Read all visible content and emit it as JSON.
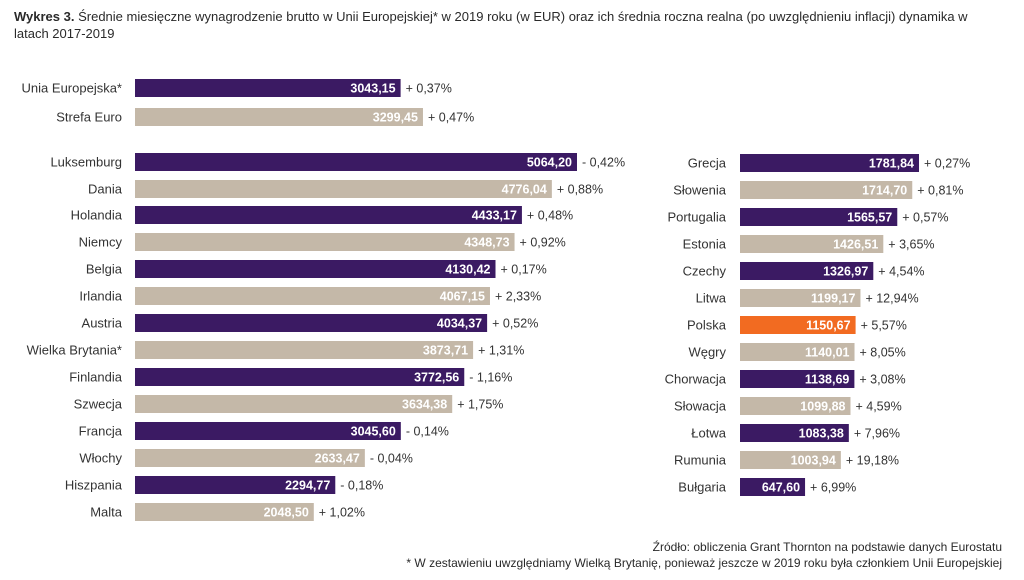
{
  "header": {
    "label": "Wykres 3.",
    "text": "Średnie miesięczne wynagrodzenie brutto w Unii Europejskiej* w 2019 roku (w EUR) oraz ich średnia roczna realna (po uwzględnieniu inflacji) dynamika w latach 2017-2019"
  },
  "footer": {
    "source": "Źródło: obliczenia Grant Thornton na podstawie danych Eurostatu",
    "note": "* W zestawieniu uwzględniamy Wielką Brytanię, ponieważ jeszcze w 2019 roku była członkiem Unii Europejskiej"
  },
  "colors": {
    "purple": "#3b1a63",
    "beige": "#c4b8a8",
    "orange": "#f26b21"
  },
  "chart_data": [
    {
      "type": "bar",
      "orientation": "horizontal",
      "panel": "left",
      "unit": "EUR",
      "categories": [
        "Unia Europejska*",
        "Strefa Euro",
        "Luksemburg",
        "Dania",
        "Holandia",
        "Niemcy",
        "Belgia",
        "Irlandia",
        "Austria",
        "Wielka Brytania*",
        "Finlandia",
        "Szwecja",
        "Francja",
        "Włochy",
        "Hiszpania",
        "Malta"
      ],
      "values": [
        3043.15,
        3299.45,
        5064.2,
        4776.04,
        4433.17,
        4348.73,
        4130.42,
        4067.15,
        4034.37,
        3873.71,
        3772.56,
        3634.38,
        3045.6,
        2633.47,
        2294.77,
        2048.5
      ],
      "value_labels": [
        "3043,15",
        "3299,45",
        "5064,20",
        "4776,04",
        "4433,17",
        "4348,73",
        "4130,42",
        "4067,15",
        "4034,37",
        "3873,71",
        "3772,56",
        "3634,38",
        "3045,60",
        "2633,47",
        "2294,77",
        "2048,50"
      ],
      "change_labels": [
        "+ 0,37%",
        "+ 0,47%",
        "- 0,42%",
        "+ 0,88%",
        "+ 0,48%",
        "+ 0,92%",
        "+ 0,17%",
        "+ 2,33%",
        "+ 0,52%",
        "+ 1,31%",
        "- 1,16%",
        "+ 1,75%",
        "- 0,14%",
        "- 0,04%",
        "- 0,18%",
        "+ 1,02%"
      ],
      "bar_colors": [
        "purple",
        "beige",
        "purple",
        "beige",
        "purple",
        "beige",
        "purple",
        "beige",
        "purple",
        "beige",
        "purple",
        "beige",
        "purple",
        "beige",
        "purple",
        "beige"
      ]
    },
    {
      "type": "bar",
      "orientation": "horizontal",
      "panel": "right",
      "unit": "EUR",
      "categories": [
        "Grecja",
        "Słowenia",
        "Portugalia",
        "Estonia",
        "Czechy",
        "Litwa",
        "Polska",
        "Węgry",
        "Chorwacja",
        "Słowacja",
        "Łotwa",
        "Rumunia",
        "Bułgaria"
      ],
      "values": [
        1781.84,
        1714.7,
        1565.57,
        1426.51,
        1326.97,
        1199.17,
        1150.67,
        1140.01,
        1138.69,
        1099.88,
        1083.38,
        1003.94,
        647.6
      ],
      "value_labels": [
        "1781,84",
        "1714,70",
        "1565,57",
        "1426,51",
        "1326,97",
        "1199,17",
        "1150,67",
        "1140,01",
        "1138,69",
        "1099,88",
        "1083,38",
        "1003,94",
        "647,60"
      ],
      "change_labels": [
        "+ 0,27%",
        "+ 0,81%",
        "+ 0,57%",
        "+ 3,65%",
        "+ 4,54%",
        "+ 12,94%",
        "+ 5,57%",
        "+ 8,05%",
        "+ 3,08%",
        "+ 4,59%",
        "+ 7,96%",
        "+ 19,18%",
        "+ 6,99%"
      ],
      "bar_colors": [
        "purple",
        "beige",
        "purple",
        "beige",
        "purple",
        "beige",
        "orange",
        "beige",
        "purple",
        "beige",
        "purple",
        "beige",
        "purple"
      ]
    }
  ]
}
